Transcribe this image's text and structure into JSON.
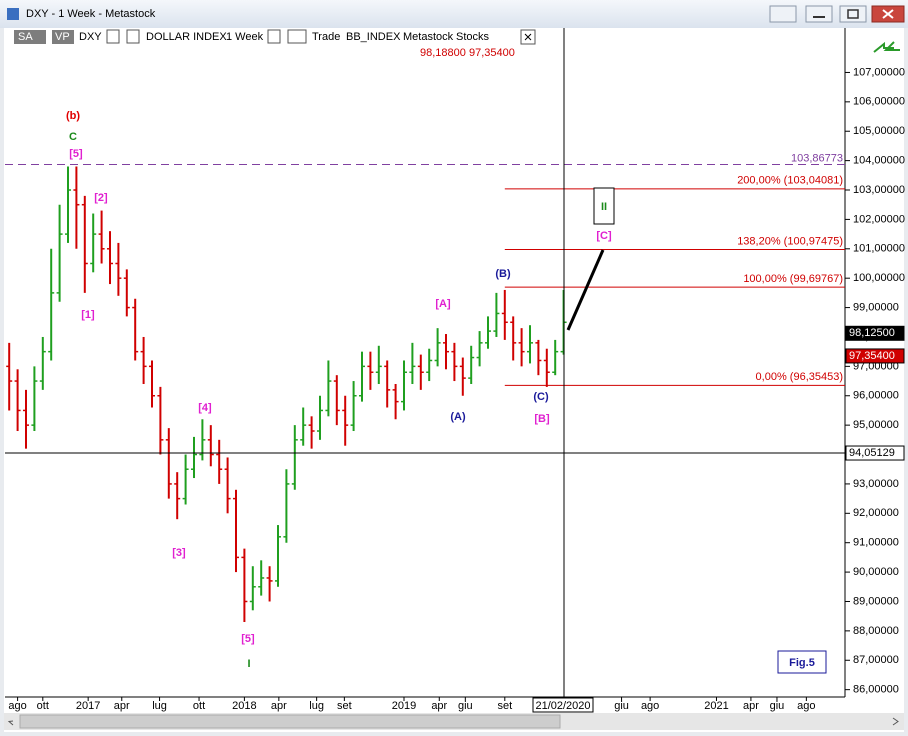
{
  "window": {
    "title": "DXY - 1 Week - Metastock"
  },
  "toolbar": {
    "sa": "SA",
    "vp": "VP",
    "symbol": "DXY",
    "name": "DOLLAR INDEX",
    "period": "1 Week",
    "mode": "Trade",
    "source": "BB_INDEX",
    "vendor": "Metastock",
    "kind": "Stocks",
    "quote_1": "98,18800",
    "quote_2": "97,35400"
  },
  "chart_data": {
    "type": "ohlc",
    "up_color": "#1f9f1f",
    "down_color": "#d00000",
    "open": [
      97,
      96.5,
      95.5,
      95,
      96.5,
      97.5,
      99.5,
      101.5,
      103,
      102.5,
      100.5,
      101.5,
      101,
      100.5,
      100,
      99,
      97.5,
      97,
      96,
      94.5,
      93,
      92.5,
      93.5,
      94,
      94.5,
      94,
      93.5,
      92.5,
      90.5,
      89,
      89.5,
      89.8,
      89.7,
      91.2,
      93,
      94.5,
      95,
      94.8,
      95.5,
      96.5,
      95.5,
      95,
      96,
      97,
      96.8,
      97,
      96.2,
      95.8,
      96.8,
      97,
      96.8,
      97.2,
      97.8,
      97.5,
      97,
      96.6,
      97.3,
      97.8,
      98.2,
      98.8,
      98.5,
      97.8,
      97.5,
      97.8,
      97.2,
      96.8,
      97.5
    ],
    "high": [
      97.8,
      96.9,
      96.2,
      97.0,
      98.0,
      101.0,
      102.5,
      103.8,
      103.8,
      102.8,
      102.2,
      102.3,
      101.6,
      101.2,
      100.3,
      99.3,
      98.0,
      97.2,
      96.3,
      94.9,
      93.4,
      94.0,
      94.6,
      95.2,
      95.0,
      94.5,
      93.9,
      92.8,
      90.8,
      90.2,
      90.4,
      90.2,
      91.6,
      93.5,
      95.0,
      95.6,
      95.3,
      96.0,
      97.2,
      96.7,
      96.0,
      96.5,
      97.5,
      97.5,
      97.7,
      97.2,
      96.4,
      97.2,
      97.8,
      97.4,
      97.6,
      98.3,
      98.1,
      97.8,
      97.3,
      97.7,
      98.2,
      98.7,
      99.5,
      99.6,
      98.7,
      98.3,
      98.4,
      97.9,
      97.6,
      97.9,
      99.6
    ],
    "low": [
      95.5,
      94.8,
      94.2,
      94.8,
      96.2,
      97.2,
      99.2,
      101.2,
      101.0,
      99.5,
      100.2,
      100.5,
      99.8,
      99.4,
      98.7,
      97.2,
      96.4,
      95.6,
      94.0,
      92.5,
      91.8,
      92.3,
      93.2,
      93.8,
      93.6,
      93.0,
      92.0,
      90.0,
      88.3,
      88.7,
      89.2,
      89.0,
      89.5,
      91.0,
      92.8,
      94.3,
      94.2,
      94.5,
      95.3,
      95.0,
      94.3,
      94.8,
      95.8,
      96.2,
      96.4,
      95.6,
      95.2,
      95.5,
      96.4,
      96.2,
      96.5,
      97.0,
      96.9,
      96.5,
      96.0,
      96.4,
      97.0,
      97.6,
      98.0,
      97.9,
      97.2,
      97.0,
      97.1,
      96.7,
      96.3,
      96.7,
      97.4
    ],
    "close": [
      96.5,
      95.5,
      95,
      96.5,
      97.5,
      99.5,
      101.5,
      103,
      102.5,
      100.5,
      101.5,
      101,
      100.5,
      100,
      99,
      97.5,
      97,
      96,
      94.5,
      93,
      92.5,
      93.5,
      94,
      94.5,
      94,
      93.5,
      92.5,
      90.5,
      89,
      89.5,
      89.8,
      89.7,
      91.2,
      93,
      94.5,
      95,
      94.8,
      95.5,
      96.5,
      95.5,
      95,
      96,
      97,
      96.8,
      97,
      96.2,
      95.8,
      96.8,
      97,
      96.8,
      97.2,
      97.8,
      97.5,
      97,
      96.6,
      97.3,
      97.8,
      98.2,
      98.8,
      98.5,
      97.8,
      97.5,
      97.8,
      97.2,
      96.8,
      97.5,
      98.5
    ],
    "xlim": [
      -0.5,
      99.5
    ],
    "xticks": [
      {
        "value": 1,
        "label": "ago"
      },
      {
        "value": 4,
        "label": "ott"
      },
      {
        "value": 9.4,
        "label": "2017"
      },
      {
        "value": 13.4,
        "label": "apr"
      },
      {
        "value": 17.9,
        "label": "lug"
      },
      {
        "value": 22.6,
        "label": "ott"
      },
      {
        "value": 28,
        "label": "2018"
      },
      {
        "value": 32.1,
        "label": "apr"
      },
      {
        "value": 36.6,
        "label": "lug"
      },
      {
        "value": 39.9,
        "label": "set"
      },
      {
        "value": 47,
        "label": "2019"
      },
      {
        "value": 51.2,
        "label": "apr"
      },
      {
        "value": 54.3,
        "label": "giu"
      },
      {
        "value": 59,
        "label": "set"
      },
      {
        "value": 72.9,
        "label": "giu"
      },
      {
        "value": 76.3,
        "label": "ago"
      },
      {
        "value": 84.2,
        "label": "2021"
      },
      {
        "value": 88.3,
        "label": "apr"
      },
      {
        "value": 91.4,
        "label": "giu"
      },
      {
        "value": 94.9,
        "label": "ago"
      }
    ],
    "cursor_date": "21/02/2020",
    "ylim": [
      85.75,
      107.9
    ],
    "yticks": [
      {
        "value": 86,
        "label": "86,00000"
      },
      {
        "value": 87,
        "label": "87,00000"
      },
      {
        "value": 88,
        "label": "88,00000"
      },
      {
        "value": 89,
        "label": "89,00000"
      },
      {
        "value": 90,
        "label": "90,00000"
      },
      {
        "value": 91,
        "label": "91,00000"
      },
      {
        "value": 92,
        "label": "92,00000"
      },
      {
        "value": 93,
        "label": "93,00000"
      },
      {
        "value": 94,
        "label": "94,00000"
      },
      {
        "value": 95,
        "label": "95,00000"
      },
      {
        "value": 96,
        "label": "96,00000"
      },
      {
        "value": 97,
        "label": "97,00000"
      },
      {
        "value": 98,
        "label": "98,00000"
      },
      {
        "value": 99,
        "label": "99,00000"
      },
      {
        "value": 100,
        "label": "100,00000"
      },
      {
        "value": 101,
        "label": "101,00000"
      },
      {
        "value": 102,
        "label": "102,00000"
      },
      {
        "value": 103,
        "label": "103,00000"
      },
      {
        "value": 104,
        "label": "104,00000"
      },
      {
        "value": 105,
        "label": "105,00000"
      },
      {
        "value": 106,
        "label": "106,00000"
      },
      {
        "value": 107,
        "label": "107,00000"
      }
    ],
    "top_level": {
      "value": 103.86773,
      "label": "103,86773",
      "color": "#8040a0"
    },
    "fib_levels": [
      {
        "value": 103.04081,
        "label": "200,00% (103,04081)"
      },
      {
        "value": 100.97475,
        "label": "138,20% (100,97475)"
      },
      {
        "value": 99.69767,
        "label": "100,00% (99,69767)"
      },
      {
        "value": 96.35453,
        "label": "0,00% (96,35453)"
      }
    ],
    "fib_color": "#d00000",
    "price_markers": [
      {
        "value": 98.125,
        "label": "98,12500",
        "color": "#000000"
      },
      {
        "value": 97.354,
        "label": "97,35400",
        "color": "#d00000"
      },
      {
        "value": 94.05129,
        "label": "94,05129",
        "color": "#ffffff"
      }
    ],
    "wave_labels": [
      {
        "text": "(b)",
        "color": "#e00000"
      },
      {
        "text": "C",
        "color": "#1a8a1a"
      },
      {
        "text": "[5]",
        "color": "#e020d0"
      },
      {
        "text": "[2]",
        "color": "#e020d0"
      },
      {
        "text": "[1]",
        "color": "#e020d0"
      },
      {
        "text": "[3]",
        "color": "#e020d0"
      },
      {
        "text": "[4]",
        "color": "#e020d0"
      },
      {
        "text": "[5]",
        "color": "#e020d0"
      },
      {
        "text": "I",
        "color": "#1a8a1a"
      },
      {
        "text": "[A]",
        "color": "#e020d0"
      },
      {
        "text": "(A)",
        "color": "#1a1a9a"
      },
      {
        "text": "(B)",
        "color": "#1a1a9a"
      },
      {
        "text": "(C)",
        "color": "#1a1a9a"
      },
      {
        "text": "[B]",
        "color": "#e020d0"
      },
      {
        "text": "[C]",
        "color": "#e020d0"
      },
      {
        "text": "II",
        "color": "#1a8a1a"
      }
    ],
    "figure_label": "Fig.5"
  }
}
